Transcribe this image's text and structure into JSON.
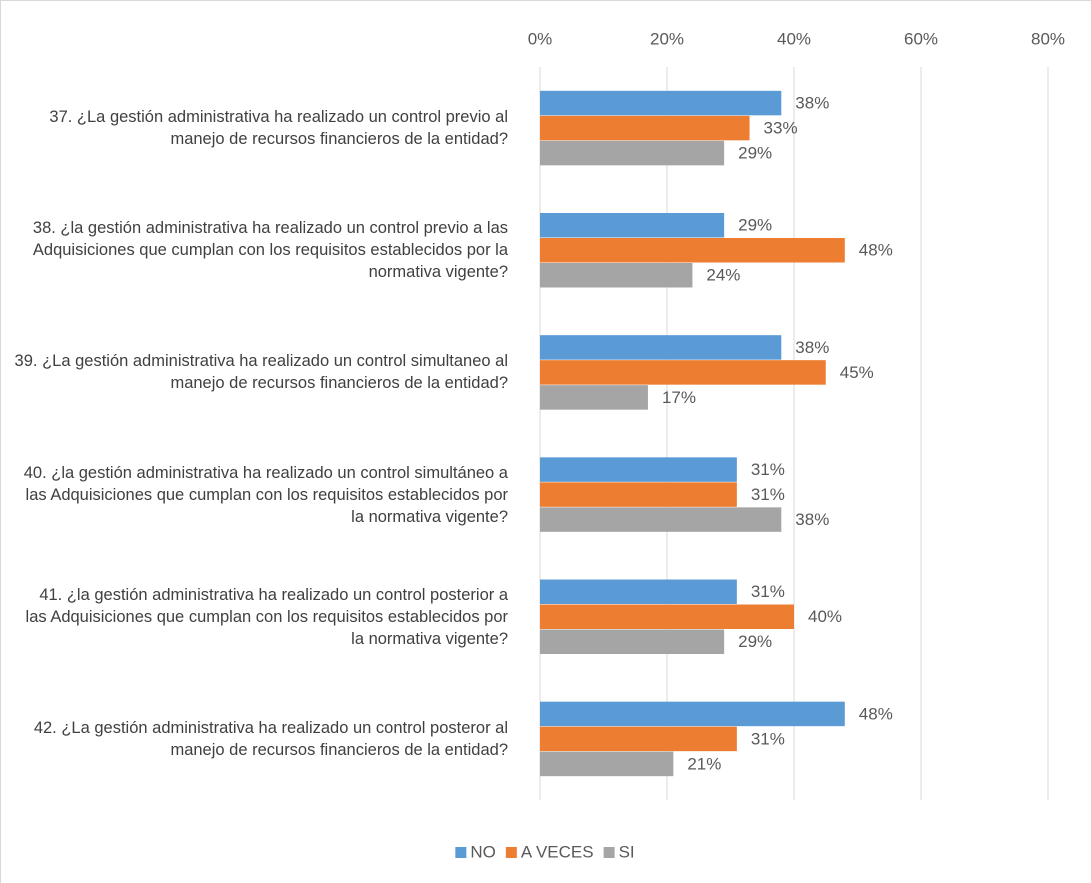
{
  "chart_data": {
    "type": "bar",
    "orientation": "horizontal",
    "categories": [
      "37. ¿La gestión administrativa ha realizado un control previo al manejo de recursos financieros de la entidad?",
      "38. ¿la gestión administrativa ha realizado un control previo a las Adquisiciones que cumplan con los requisitos establecidos por la normativa vigente?",
      "39. ¿La gestión administrativa ha realizado un control simultaneo al manejo de recursos financieros de la entidad?",
      "40. ¿la gestión administrativa ha realizado un control simultáneo a las Adquisiciones que cumplan con los requisitos establecidos por la normativa vigente?",
      "41. ¿la gestión administrativa ha realizado un control posterior a las Adquisiciones que cumplan con los requisitos establecidos por la normativa vigente?",
      "42. ¿La gestión administrativa ha realizado un control posteror al manejo de recursos financieros de la entidad?"
    ],
    "series": [
      {
        "name": "NO",
        "color": "#5b9bd5",
        "values": [
          38,
          29,
          38,
          31,
          31,
          48
        ],
        "value_labels": [
          "38%",
          "29%",
          "38%",
          "31%",
          "31%",
          "48%"
        ]
      },
      {
        "name": "A VECES",
        "color": "#ed7d31",
        "values": [
          33,
          48,
          45,
          31,
          40,
          31
        ],
        "value_labels": [
          "33%",
          "48%",
          "45%",
          "31%",
          "40%",
          "31%"
        ]
      },
      {
        "name": "SI",
        "color": "#a5a5a5",
        "values": [
          29,
          24,
          17,
          38,
          29,
          21
        ],
        "value_labels": [
          "29%",
          "24%",
          "17%",
          "38%",
          "29%",
          "21%"
        ]
      }
    ],
    "xlim": [
      0,
      80
    ],
    "xticks": [
      {
        "value": 0,
        "label": "0%"
      },
      {
        "value": 20,
        "label": "20%"
      },
      {
        "value": 40,
        "label": "40%"
      },
      {
        "value": 60,
        "label": "60%"
      },
      {
        "value": 80,
        "label": "80%"
      }
    ],
    "grid": true,
    "legend": "bottom"
  }
}
